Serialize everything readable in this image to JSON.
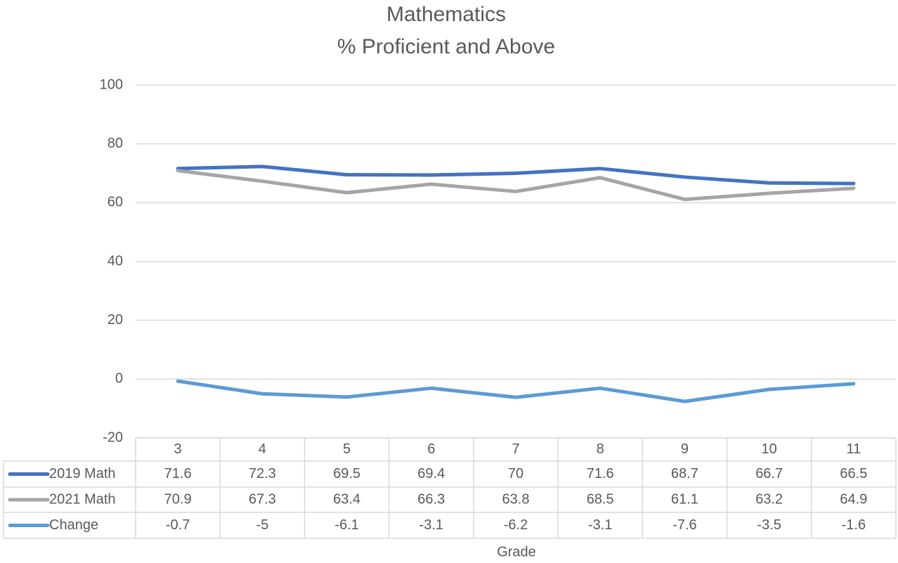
{
  "chart_data": {
    "type": "line",
    "title": "Mathematics",
    "subtitle": "% Proficient and Above",
    "x_label": "Grade",
    "categories": [
      "3",
      "4",
      "5",
      "6",
      "7",
      "8",
      "9",
      "10",
      "11"
    ],
    "series": [
      {
        "name": "2019 Math",
        "color": "#4472c4",
        "values": [
          71.6,
          72.3,
          69.5,
          69.4,
          70,
          71.6,
          68.7,
          66.7,
          66.5
        ]
      },
      {
        "name": "2021 Math",
        "color": "#a5a5a5",
        "values": [
          70.9,
          67.3,
          63.4,
          66.3,
          63.8,
          68.5,
          61.1,
          63.2,
          64.9
        ]
      },
      {
        "name": "Change",
        "color": "#5b9bd5",
        "values": [
          -0.7,
          -5,
          -6.1,
          -3.1,
          -6.2,
          -3.1,
          -7.6,
          -3.5,
          -1.6
        ]
      }
    ],
    "ylim": [
      -20,
      100
    ],
    "yticks": [
      -20,
      0,
      20,
      40,
      60,
      80,
      100
    ],
    "grid": true,
    "data_table": true
  }
}
